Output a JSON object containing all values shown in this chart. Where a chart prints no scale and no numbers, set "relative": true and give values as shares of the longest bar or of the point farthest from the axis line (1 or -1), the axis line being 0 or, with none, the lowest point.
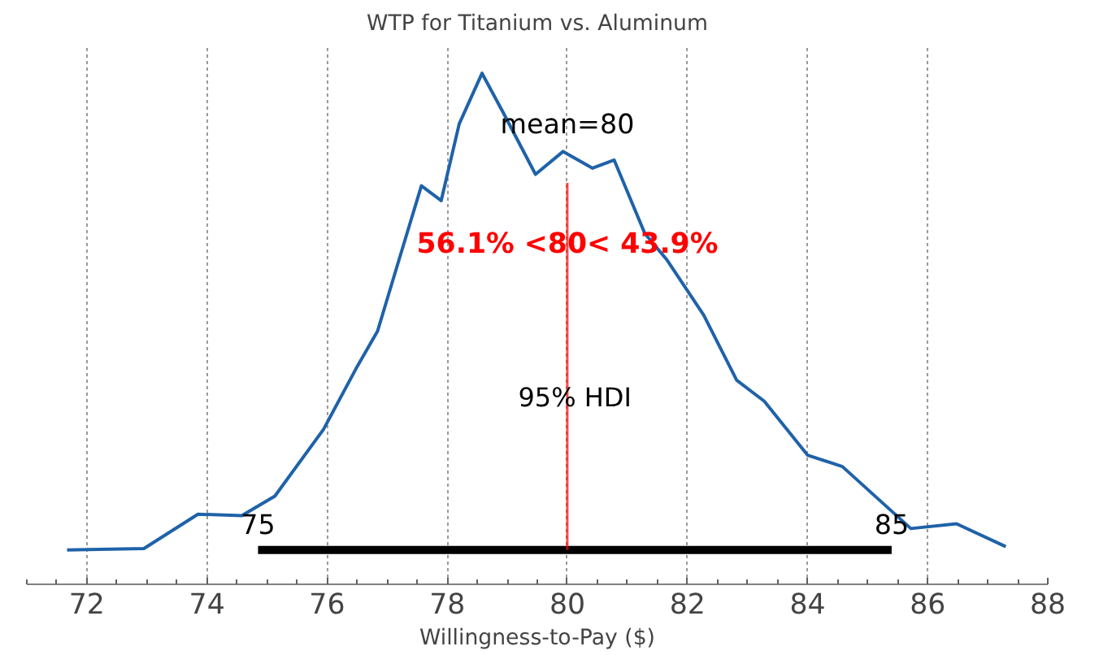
{
  "chart_data": {
    "type": "line",
    "title": "WTP for Titanium vs. Aluminum",
    "xlabel": "Willingness-to-Pay ($)",
    "relative": true,
    "xlim": [
      71,
      88
    ],
    "xticks": [
      72,
      74,
      76,
      78,
      80,
      82,
      84,
      86,
      88
    ],
    "grid": "x",
    "series": [
      {
        "color": "#1f62a8",
        "x": [
          71.67,
          72.95,
          73.85,
          74.58,
          75.13,
          75.94,
          76.48,
          76.84,
          77.2,
          77.57,
          77.9,
          78.2,
          78.58,
          78.93,
          79.47,
          79.93,
          80.42,
          80.78,
          81.29,
          81.65,
          82.27,
          82.82,
          83.28,
          84.0,
          84.58,
          85.72,
          86.48,
          87.3
        ],
        "values": [
          0,
          0.003,
          0.075,
          0.072,
          0.113,
          0.253,
          0.38,
          0.459,
          0.61,
          0.764,
          0.733,
          0.894,
          1.0,
          0.918,
          0.788,
          0.836,
          0.801,
          0.818,
          0.664,
          0.61,
          0.493,
          0.356,
          0.312,
          0.199,
          0.175,
          0.045,
          0.055,
          0.007
        ]
      },
      {
        "name": "95% HDI",
        "color": "#000000",
        "x": [
          74.85,
          85.4
        ],
        "values": [
          0,
          0
        ]
      }
    ],
    "ref_lines": [
      {
        "axis": "x",
        "value": 80,
        "label": "56.1% <80< 43.9%",
        "color": "#ff0000"
      }
    ],
    "annotations": [
      "mean=80",
      {
        "text": "75",
        "x": 74.85,
        "y": 0
      },
      {
        "text": "85",
        "x": 85.4,
        "y": 0
      }
    ]
  }
}
